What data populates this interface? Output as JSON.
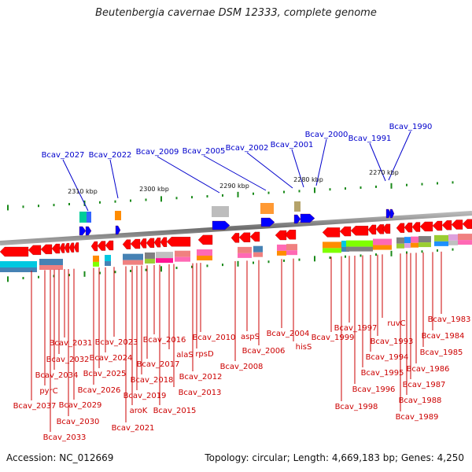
{
  "title": "Beutenbergia cavernae DSM 12333, complete genome",
  "footer": {
    "accession": "Accession: NC_012669",
    "summary": "Topology: circular; Length: 4,669,183 bp; Genes: 4,250"
  },
  "colors": {
    "forward_genes": "#0000ff",
    "reverse_genes": "#ff0000",
    "label_upper": "#0000cc",
    "label_lower": "#cc0000",
    "backbone": "#808080",
    "ticks": "#1a8a1a"
  },
  "scale_labels": [
    "2310 kbp",
    "2300 kbp",
    "2290 kbp",
    "2280 kbp",
    "2270 kbp"
  ],
  "upper_labels": [
    "Bcav_2027",
    "Bcav_2022",
    "Bcav_2009",
    "Bcav_2005",
    "Bcav_2002",
    "Bcav_2001",
    "Bcav_2000",
    "Bcav_1991",
    "Bcav_1990"
  ],
  "lower_labels": [
    "Bcav_2037",
    "pyrC",
    "Bcav_2033",
    "Bcav_2034",
    "Bcav_2032",
    "Bcav_2031",
    "Bcav_2030",
    "Bcav_2029",
    "Bcav_2026",
    "Bcav_2025",
    "Bcav_2024",
    "Bcav_2023",
    "Bcav_2021",
    "aroK",
    "Bcav_2019",
    "Bcav_2018",
    "Bcav_2017",
    "Bcav_2016",
    "Bcav_2015",
    "alaS",
    "Bcav_2013",
    "Bcav_2012",
    "rpsD",
    "Bcav_2010",
    "Bcav_2008",
    "aspS",
    "Bcav_2006",
    "Bcav_2004",
    "hisS",
    "Bcav_1999",
    "Bcav_1997",
    "Bcav_1998",
    "Bcav_1996",
    "Bcav_1995",
    "Bcav_1994",
    "Bcav_1993",
    "ruvC",
    "Bcav_1989",
    "Bcav_1988",
    "Bcav_1987",
    "Bcav_1986",
    "Bcav_1985",
    "Bcav_1984",
    "Bcav_1983"
  ]
}
